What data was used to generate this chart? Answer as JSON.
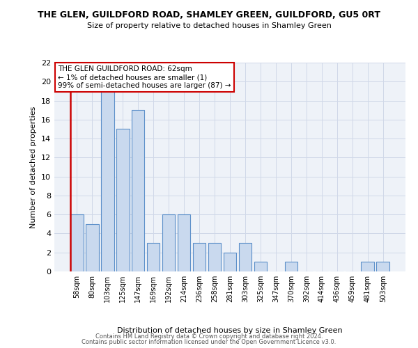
{
  "title": "THE GLEN, GUILDFORD ROAD, SHAMLEY GREEN, GUILDFORD, GU5 0RT",
  "subtitle": "Size of property relative to detached houses in Shamley Green",
  "xlabel": "Distribution of detached houses by size in Shamley Green",
  "ylabel": "Number of detached properties",
  "categories": [
    "58sqm",
    "80sqm",
    "103sqm",
    "125sqm",
    "147sqm",
    "169sqm",
    "192sqm",
    "214sqm",
    "236sqm",
    "258sqm",
    "281sqm",
    "303sqm",
    "325sqm",
    "347sqm",
    "370sqm",
    "392sqm",
    "414sqm",
    "436sqm",
    "459sqm",
    "481sqm",
    "503sqm"
  ],
  "values": [
    6,
    5,
    19,
    15,
    17,
    3,
    6,
    6,
    3,
    3,
    2,
    3,
    1,
    0,
    1,
    0,
    0,
    0,
    0,
    1,
    1
  ],
  "bar_color": "#c9d9ee",
  "bar_edge_color": "#5b8fc9",
  "highlight_color": "#cc0000",
  "ylim": [
    0,
    22
  ],
  "yticks": [
    0,
    2,
    4,
    6,
    8,
    10,
    12,
    14,
    16,
    18,
    20,
    22
  ],
  "annotation_line1": "THE GLEN GUILDFORD ROAD: 62sqm",
  "annotation_line2": "← 1% of detached houses are smaller (1)",
  "annotation_line3": "99% of semi-detached houses are larger (87) →",
  "annotation_box_color": "#ffffff",
  "annotation_box_edge": "#cc0000",
  "bg_color": "#eef2f8",
  "grid_color": "#d0d8e8",
  "footer1": "Contains HM Land Registry data © Crown copyright and database right 2024.",
  "footer2": "Contains public sector information licensed under the Open Government Licence v3.0."
}
